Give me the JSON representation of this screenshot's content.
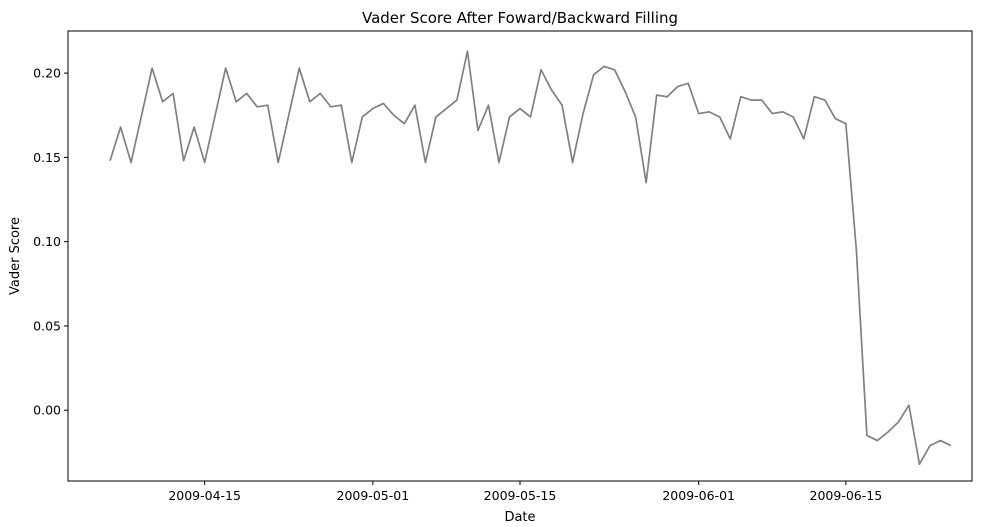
{
  "chart_data": {
    "type": "line",
    "title": "Vader Score After Foward/Backward Filling",
    "xlabel": "Date",
    "ylabel": "Vader Score",
    "xlim": [
      "2009-04-02",
      "2009-06-27"
    ],
    "ylim": [
      -0.042,
      0.225
    ],
    "x_ticks": [
      {
        "date": "2009-04-15",
        "label": "2009-04-15"
      },
      {
        "date": "2009-05-01",
        "label": "2009-05-01"
      },
      {
        "date": "2009-05-15",
        "label": "2009-05-15"
      },
      {
        "date": "2009-06-01",
        "label": "2009-06-01"
      },
      {
        "date": "2009-06-15",
        "label": "2009-06-15"
      }
    ],
    "y_ticks": [
      {
        "value": 0.2,
        "label": "0.20"
      },
      {
        "value": 0.15,
        "label": "0.15"
      },
      {
        "value": 0.1,
        "label": "0.10"
      },
      {
        "value": 0.05,
        "label": "0.05"
      },
      {
        "value": 0.0,
        "label": "0.00"
      }
    ],
    "grid": false,
    "series": [
      {
        "color": "#808080",
        "points": [
          [
            "2009-04-06",
            0.148
          ],
          [
            "2009-04-07",
            0.168
          ],
          [
            "2009-04-08",
            0.147
          ],
          [
            "2009-04-09",
            0.175
          ],
          [
            "2009-04-10",
            0.203
          ],
          [
            "2009-04-11",
            0.183
          ],
          [
            "2009-04-12",
            0.188
          ],
          [
            "2009-04-13",
            0.148
          ],
          [
            "2009-04-14",
            0.168
          ],
          [
            "2009-04-15",
            0.147
          ],
          [
            "2009-04-16",
            0.175
          ],
          [
            "2009-04-17",
            0.203
          ],
          [
            "2009-04-18",
            0.183
          ],
          [
            "2009-04-19",
            0.188
          ],
          [
            "2009-04-20",
            0.18
          ],
          [
            "2009-04-21",
            0.181
          ],
          [
            "2009-04-22",
            0.147
          ],
          [
            "2009-04-23",
            0.175
          ],
          [
            "2009-04-24",
            0.203
          ],
          [
            "2009-04-25",
            0.183
          ],
          [
            "2009-04-26",
            0.188
          ],
          [
            "2009-04-27",
            0.18
          ],
          [
            "2009-04-28",
            0.181
          ],
          [
            "2009-04-29",
            0.147
          ],
          [
            "2009-04-30",
            0.174
          ],
          [
            "2009-05-01",
            0.179
          ],
          [
            "2009-05-02",
            0.182
          ],
          [
            "2009-05-03",
            0.175
          ],
          [
            "2009-05-04",
            0.17
          ],
          [
            "2009-05-05",
            0.181
          ],
          [
            "2009-05-06",
            0.147
          ],
          [
            "2009-05-07",
            0.174
          ],
          [
            "2009-05-08",
            0.179
          ],
          [
            "2009-05-09",
            0.184
          ],
          [
            "2009-05-10",
            0.213
          ],
          [
            "2009-05-11",
            0.166
          ],
          [
            "2009-05-12",
            0.181
          ],
          [
            "2009-05-13",
            0.147
          ],
          [
            "2009-05-14",
            0.174
          ],
          [
            "2009-05-15",
            0.179
          ],
          [
            "2009-05-16",
            0.174
          ],
          [
            "2009-05-17",
            0.202
          ],
          [
            "2009-05-18",
            0.19
          ],
          [
            "2009-05-19",
            0.181
          ],
          [
            "2009-05-20",
            0.147
          ],
          [
            "2009-05-21",
            0.176
          ],
          [
            "2009-05-22",
            0.199
          ],
          [
            "2009-05-23",
            0.204
          ],
          [
            "2009-05-24",
            0.202
          ],
          [
            "2009-05-25",
            0.189
          ],
          [
            "2009-05-26",
            0.174
          ],
          [
            "2009-05-27",
            0.135
          ],
          [
            "2009-05-28",
            0.187
          ],
          [
            "2009-05-29",
            0.186
          ],
          [
            "2009-05-30",
            0.192
          ],
          [
            "2009-05-31",
            0.194
          ],
          [
            "2009-06-01",
            0.176
          ],
          [
            "2009-06-02",
            0.177
          ],
          [
            "2009-06-03",
            0.174
          ],
          [
            "2009-06-04",
            0.161
          ],
          [
            "2009-06-05",
            0.186
          ],
          [
            "2009-06-06",
            0.184
          ],
          [
            "2009-06-07",
            0.184
          ],
          [
            "2009-06-08",
            0.176
          ],
          [
            "2009-06-09",
            0.177
          ],
          [
            "2009-06-10",
            0.174
          ],
          [
            "2009-06-11",
            0.161
          ],
          [
            "2009-06-12",
            0.186
          ],
          [
            "2009-06-13",
            0.184
          ],
          [
            "2009-06-14",
            0.173
          ],
          [
            "2009-06-15",
            0.17
          ],
          [
            "2009-06-16",
            0.095
          ],
          [
            "2009-06-17",
            -0.015
          ],
          [
            "2009-06-18",
            -0.018
          ],
          [
            "2009-06-19",
            -0.013
          ],
          [
            "2009-06-20",
            -0.007
          ],
          [
            "2009-06-21",
            0.003
          ],
          [
            "2009-06-22",
            -0.032
          ],
          [
            "2009-06-23",
            -0.021
          ],
          [
            "2009-06-24",
            -0.018
          ],
          [
            "2009-06-25",
            -0.021
          ]
        ]
      }
    ]
  }
}
